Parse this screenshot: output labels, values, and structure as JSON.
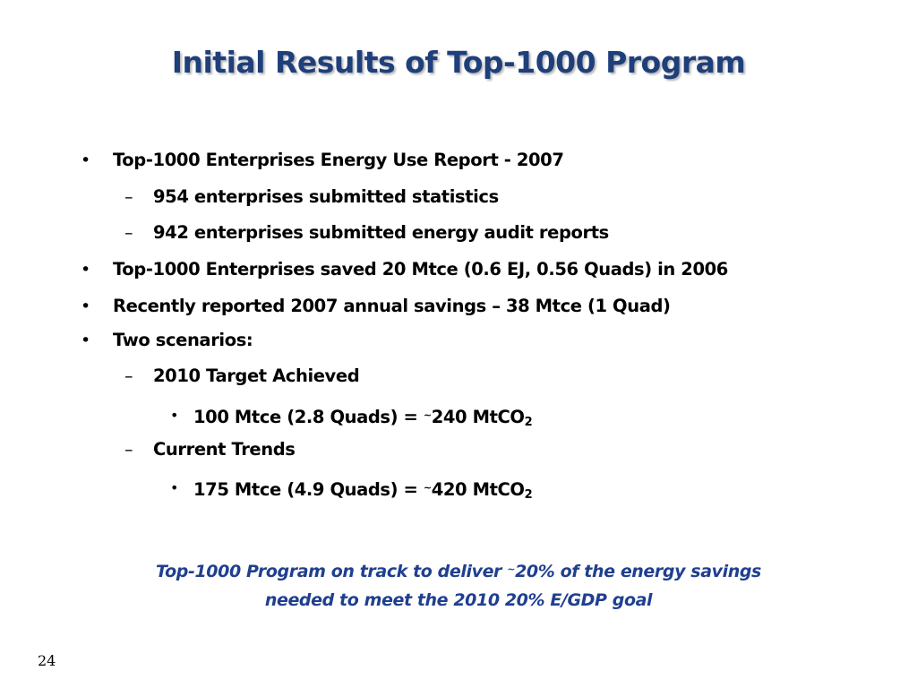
{
  "slide": {
    "title": "Initial Results of Top-1000 Program",
    "bullet_char": "•",
    "dash_char": "–",
    "tilde_char": "~",
    "items": [
      {
        "text": "Top-1000 Enterprises Energy Use Report - 2007"
      },
      {
        "text": "954 enterprises submitted statistics"
      },
      {
        "text": "942 enterprises  submitted energy audit reports"
      },
      {
        "text": "Top-1000 Enterprises saved 20 Mtce (0.6 EJ, 0.56 Quads) in 2006"
      },
      {
        "text": "Recently reported 2007 annual savings – 38 Mtce (1 Quad)"
      },
      {
        "text": "Two scenarios:"
      },
      {
        "text": "2010 Target Achieved"
      },
      {
        "text_before": "100 Mtce (2.8 Quads) = ",
        "text_after": "240 MtCO",
        "subscript": "2"
      },
      {
        "text": "Current Trends"
      },
      {
        "text_before": "175 Mtce (4.9 Quads) = ",
        "text_after": "420 MtCO",
        "subscript": "2"
      }
    ],
    "summary": {
      "line1_before": "Top-1000 Program on track to deliver ",
      "line1_after": "20% of the energy savings",
      "line2": "needed to meet the 2010 20% E/GDP goal"
    },
    "page_number": "24"
  },
  "colors": {
    "title": "#1f3f7a",
    "summary": "#1f3f8f",
    "body_text": "#000000",
    "background": "#ffffff"
  }
}
